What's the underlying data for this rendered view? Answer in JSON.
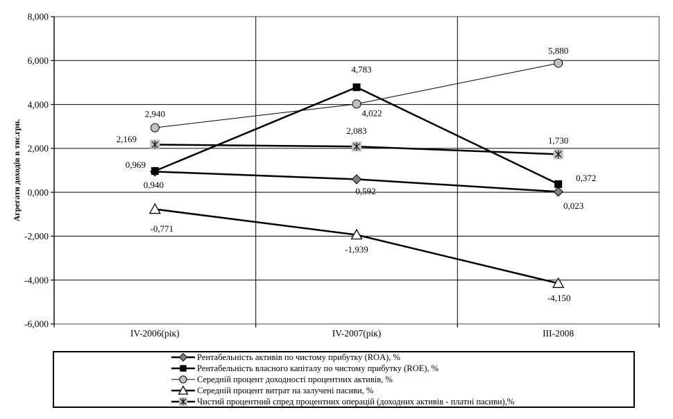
{
  "chart_data": {
    "type": "line",
    "title": "",
    "xlabel": "",
    "ylabel": "Агрегати доходів в тис.грн.",
    "categories": [
      "IV-2006(рік)",
      "IV-2007(рік)",
      "III-2008"
    ],
    "ylim": [
      -6,
      8
    ],
    "y_tick_step": 2,
    "y_tick_labels": [
      "8,000",
      "6,000",
      "4,000",
      "2,000",
      "0,000",
      "-2,000",
      "-4,000",
      "-6,000"
    ],
    "grid": true,
    "legend_position": "bottom",
    "axis_color": "#000000",
    "plot_border_color": "#808080",
    "series": [
      {
        "name": "Рентабельність активів по чистому прибутку (ROA), %",
        "marker": "diamond",
        "marker_fill": "#808080",
        "line_color": "#000000",
        "line_width": 2.5,
        "values": [
          0.94,
          0.592,
          0.023
        ],
        "point_labels": [
          "0,940",
          "0,592",
          "0,023"
        ],
        "label_offsets": [
          [
            -2,
            19
          ],
          [
            13,
            17
          ],
          [
            22,
            20
          ]
        ]
      },
      {
        "name": "Рентабельність власного капіталу по чистому прибутку (ROE), %",
        "marker": "square",
        "marker_fill": "#000000",
        "line_color": "#000000",
        "line_width": 2.5,
        "values": [
          0.969,
          4.783,
          0.372
        ],
        "point_labels": [
          "0,969",
          "4,783",
          "0,372"
        ],
        "label_offsets": [
          [
            -28,
            -9
          ],
          [
            7,
            -26
          ],
          [
            40,
            -9
          ]
        ]
      },
      {
        "name": "Середній процент доходності процентних активів, %",
        "marker": "circle",
        "marker_fill": "#c0c0c0",
        "line_color": "#000000",
        "line_width": 1,
        "values": [
          2.94,
          4.022,
          5.88
        ],
        "point_labels": [
          "2,940",
          "4,022",
          "5,880"
        ],
        "label_offsets": [
          [
            0,
            -20
          ],
          [
            22,
            13
          ],
          [
            0,
            -18
          ]
        ]
      },
      {
        "name": "Середній процент витрат на залучені пасиви, %",
        "marker": "triangle",
        "marker_fill": "#ffffff",
        "line_color": "#000000",
        "line_width": 2.5,
        "values": [
          -0.771,
          -1.939,
          -4.15
        ],
        "point_labels": [
          "-0,771",
          "-1,939",
          "-4,150"
        ],
        "label_offsets": [
          [
            10,
            28
          ],
          [
            0,
            21
          ],
          [
            1,
            21
          ]
        ]
      },
      {
        "name": "Чистий процентний спред процентних операцій (доходних активів - платні пасиви),%",
        "marker": "star6",
        "marker_fill": "#c0c0c0",
        "line_color": "#000000",
        "line_width": 2.5,
        "values": [
          2.169,
          2.083,
          1.73
        ],
        "point_labels": [
          "2,169",
          "2,083",
          "1,730"
        ],
        "label_offsets": [
          [
            -41,
            -8
          ],
          [
            0,
            -23
          ],
          [
            0,
            -20
          ]
        ]
      }
    ]
  }
}
